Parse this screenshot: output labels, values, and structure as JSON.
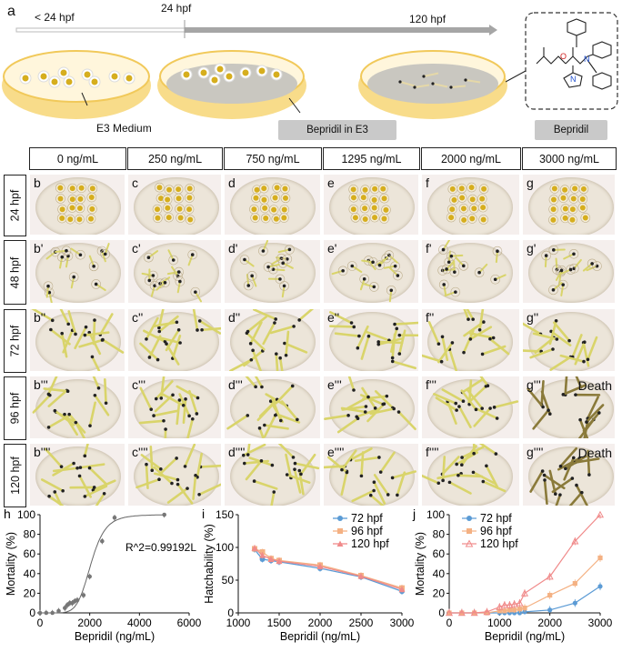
{
  "panel_a": {
    "label": "a",
    "timeline": {
      "start": "< 24 hpf",
      "mid": "24 hpf",
      "end": "120 hpf"
    },
    "medium_label": "E3 Medium",
    "bepridil_e3_label": "Bepridil in E3",
    "bepridil_label": "Bepridil"
  },
  "grid": {
    "columns": [
      "0 ng/mL",
      "250 ng/mL",
      "750 ng/mL",
      "1295 ng/mL",
      "2000 ng/mL",
      "3000 ng/mL"
    ],
    "rows": [
      {
        "label": "24 hpf",
        "cells": [
          "b",
          "c",
          "d",
          "e",
          "f",
          "g"
        ]
      },
      {
        "label": "48 hpf",
        "cells": [
          "b'",
          "c'",
          "d'",
          "e'",
          "f'",
          "g'"
        ]
      },
      {
        "label": "72 hpf",
        "cells": [
          "b''",
          "c''",
          "d''",
          "e''",
          "f''",
          "g''"
        ]
      },
      {
        "label": "96 hpf",
        "cells": [
          "b'''",
          "c'''",
          "d'''",
          "e'''",
          "f'''",
          "g'''"
        ]
      },
      {
        "label": "120 hpf",
        "cells": [
          "b''''",
          "c''''",
          "d''''",
          "e''''",
          "f''''",
          "g''''"
        ]
      }
    ],
    "death_label": "Death"
  },
  "colors": {
    "s72": "#5b9bd5",
    "s96": "#f4b183",
    "s120": "#f08a8a",
    "fit": "#666666",
    "dish_rim": "#f6d67e",
    "yolk": "#d6ae1e"
  },
  "chart_data": [
    {
      "panel": "h",
      "type": "scatter",
      "xlabel": "Bepridil (ng/mL)",
      "ylabel": "Mortality (%)",
      "xlim": [
        0,
        6000
      ],
      "ylim": [
        0,
        100
      ],
      "xticks": [
        0,
        2000,
        4000,
        6000
      ],
      "yticks": [
        0,
        20,
        40,
        60,
        80,
        100
      ],
      "annotation": "R^2=0.99192L",
      "x": [
        0,
        250,
        500,
        750,
        1000,
        1100,
        1200,
        1295,
        1400,
        1500,
        1750,
        2000,
        2500,
        3000,
        5000
      ],
      "y": [
        0,
        0,
        0,
        2,
        5,
        8,
        10,
        10,
        12,
        13,
        18,
        37,
        73,
        97,
        100
      ],
      "fit_curve": "sigmoid"
    },
    {
      "panel": "i",
      "type": "line",
      "xlabel": "Bepridil (ng/mL)",
      "ylabel": "Hatchability (%)",
      "xlim": [
        1000,
        3000
      ],
      "ylim": [
        0,
        150
      ],
      "xticks": [
        1000,
        1500,
        2000,
        2500,
        3000
      ],
      "yticks": [
        0,
        50,
        100,
        150
      ],
      "x": [
        1200,
        1295,
        1400,
        1500,
        2000,
        2500,
        3000
      ],
      "series": [
        {
          "name": "72 hpf",
          "values": [
            97,
            82,
            80,
            78,
            68,
            55,
            33
          ]
        },
        {
          "name": "96 hpf",
          "values": [
            98,
            93,
            83,
            80,
            73,
            57,
            38
          ]
        },
        {
          "name": "120 hpf",
          "values": [
            99,
            88,
            82,
            79,
            71,
            56,
            36
          ]
        }
      ]
    },
    {
      "panel": "j",
      "type": "line",
      "xlabel": "Bepridil (ng/mL)",
      "ylabel": "Mortality (%)",
      "xlim": [
        0,
        3000
      ],
      "ylim": [
        0,
        100
      ],
      "xticks": [
        0,
        1000,
        2000,
        3000
      ],
      "yticks": [
        0,
        20,
        40,
        60,
        80,
        100
      ],
      "x": [
        0,
        250,
        500,
        750,
        1000,
        1100,
        1200,
        1295,
        1400,
        1500,
        2000,
        2500,
        3000
      ],
      "series": [
        {
          "name": "72 hpf",
          "values": [
            0,
            0,
            0,
            0,
            0,
            0,
            0,
            0,
            0,
            1,
            3,
            10,
            27
          ]
        },
        {
          "name": "96 hpf",
          "values": [
            0,
            0,
            0,
            0,
            2,
            2,
            3,
            3,
            4,
            5,
            18,
            30,
            56
          ]
        },
        {
          "name": "120 hpf",
          "values": [
            0,
            0,
            0,
            1,
            6,
            8,
            8,
            9,
            10,
            20,
            37,
            73,
            100
          ]
        }
      ]
    }
  ]
}
